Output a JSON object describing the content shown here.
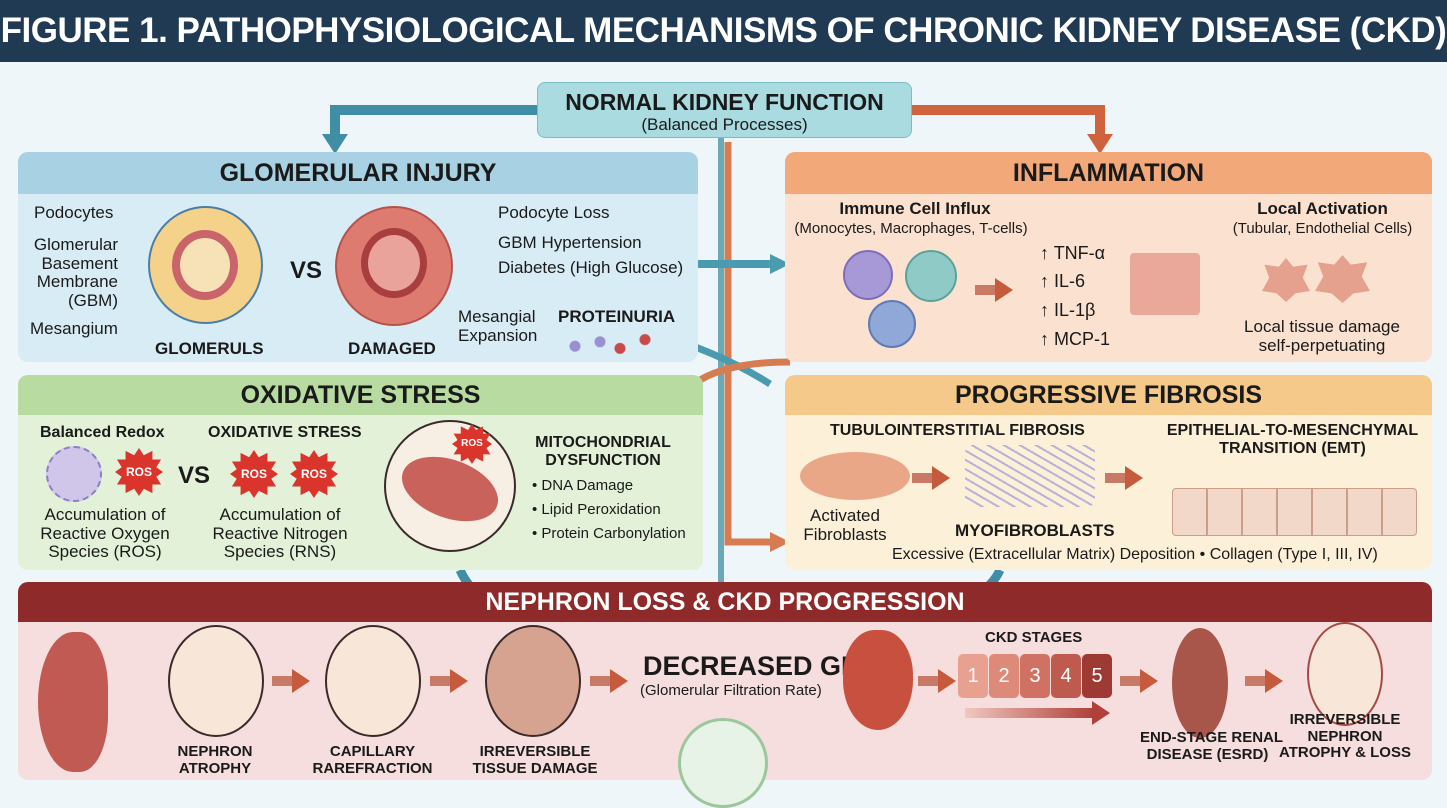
{
  "title": "FIGURE 1. PATHOPHYSIOLOGICAL MECHANISMS OF CHRONIC KIDNEY DISEASE (CKD)",
  "normal": {
    "title": "NORMAL KIDNEY FUNCTION",
    "subtitle": "(Balanced Processes)"
  },
  "glomerular": {
    "title": "GLOMERULAR INJURY",
    "labels": [
      "Podocytes",
      "Glomerular\nBasement\nMembrane\n(GBM)",
      "Mesangium"
    ],
    "left_caption": "GLOMERULS",
    "vs": "VS",
    "right_caption": "DAMAGED",
    "damage": [
      "Podocyte Loss",
      "GBM Hypertension",
      "Diabetes (High Glucose)"
    ],
    "mesangial": "Mesangial\nExpansion",
    "proteinuria": "PROTEINURIA"
  },
  "inflammation": {
    "title": "INFLAMMATION",
    "influx_title": "Immune Cell Influx",
    "influx_sub": "(Monocytes, Macrophages, T-cells)",
    "cytokines": [
      "TNF-α",
      "IL-6",
      "IL-1β",
      "MCP-1"
    ],
    "local_title": "Local Activation",
    "local_sub": "(Tubular, Endothelial Cells)",
    "damage": "Local tissue damage\nself-perpetuating"
  },
  "oxidative": {
    "title": "OXIDATIVE STRESS",
    "balanced": "Balanced Redox",
    "stress": "OXIDATIVE STRESS",
    "vs": "VS",
    "ros": "ROS",
    "left_caption": "Accumulation of\nReactive Oxygen\nSpecies (ROS)",
    "right_caption": "Accumulation of\nReactive Nitrogen\nSpecies (RNS)",
    "mito_title": "MITOCHONDRIAL\nDYSFUNCTION",
    "mito_items": [
      "DNA Damage",
      "Lipid Peroxidation",
      "Protein Carbonylation"
    ]
  },
  "fibrosis": {
    "title": "PROGRESSIVE FIBROSIS",
    "tubulo": "TUBULOINTERSTITIAL FIBROSIS",
    "emt": "EPITHELIAL-TO-MESENCHYMAL\nTRANSITION (EMT)",
    "activated": "Activated\nFibroblasts",
    "myo": "MYOFIBROBLASTS",
    "deposition": "Excessive (Extracellular Matrix) Deposition • Collagen (Type I, III, IV)"
  },
  "nephron": {
    "title": "NEPHRON LOSS & CKD PROGRESSION",
    "steps": [
      "NEPHRON\nATROPHY",
      "CAPILLARY\nRAREFRACTION",
      "IRREVERSIBLE\nTISSUE DAMAGE"
    ],
    "gfr": "DECREASED GFR",
    "gfr_sub": "(Glomerular Filtration Rate)",
    "stages_title": "CKD STAGES",
    "stages": [
      "1",
      "2",
      "3",
      "4",
      "5"
    ],
    "esrd": "END-STAGE RENAL\nDISEASE (ESRD)",
    "final": "IRREVERSIBLE\nNEPHRON\nATROPHY & LOSS"
  },
  "colors": {
    "title_bg": "#1f3a52",
    "glomerular": "#a9d1e4",
    "inflammation": "#f2a878",
    "oxidative": "#b7dba0",
    "fibrosis": "#f5c98a",
    "nephron": "#8e2a2a"
  }
}
